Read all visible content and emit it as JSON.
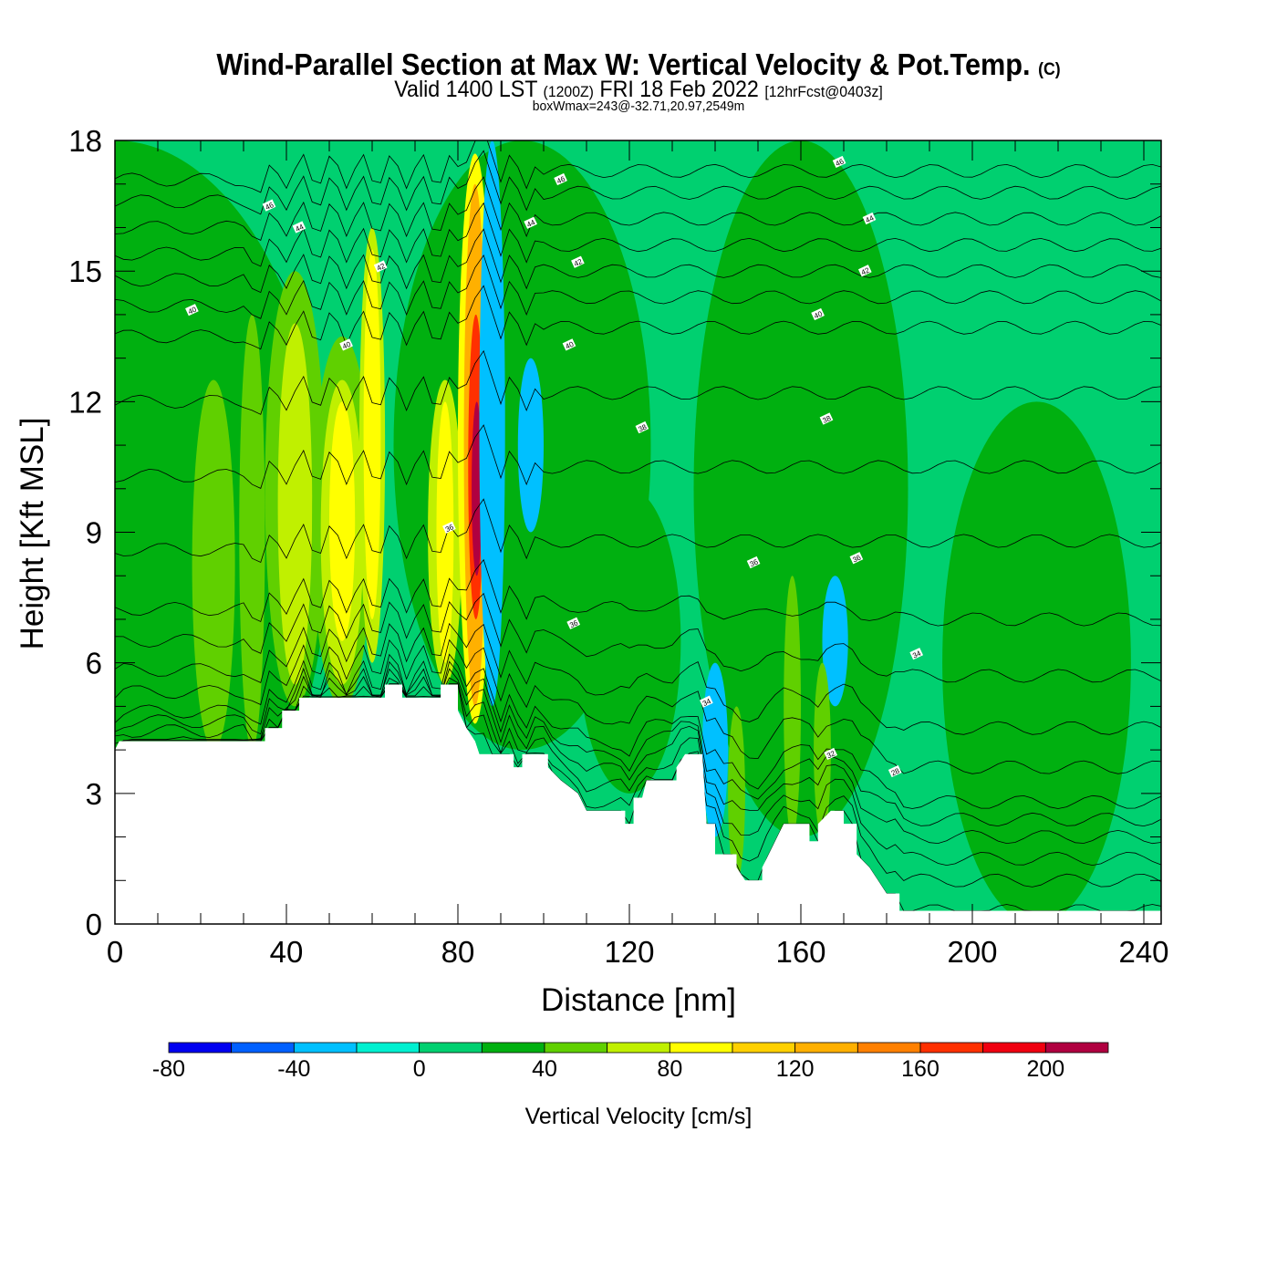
{
  "title": "Wind-Parallel Section at Max W: Vertical Velocity & Pot.Temp.",
  "copyright": "(C)",
  "subtitle": {
    "main1": "Valid 1400 LST",
    "utc": "(1200Z)",
    "main2": "FRI 18 Feb 2022",
    "fcst": "[12hrFcst@0403z]"
  },
  "box_info": "boxWmax=243@-32.71,20.97,2549m",
  "chart_data": {
    "type": "heatmap",
    "xlabel": "Distance [nm]",
    "ylabel": "Height [Kft MSL]",
    "xlim": [
      0,
      244
    ],
    "ylim": [
      0,
      18
    ],
    "xticks": [
      0,
      40,
      80,
      120,
      160,
      200,
      240
    ],
    "yticks": [
      0,
      3,
      6,
      9,
      12,
      15,
      18
    ],
    "colorbar": {
      "label": "Vertical Velocity [cm/s]",
      "bounds": [
        -80,
        -60,
        -40,
        -20,
        0,
        20,
        40,
        60,
        80,
        100,
        120,
        140,
        160,
        180,
        200,
        220
      ],
      "colors": [
        "#0000f0",
        "#0060ff",
        "#00c0ff",
        "#00f0d0",
        "#00d070",
        "#00b010",
        "#60d000",
        "#c0f000",
        "#ffff00",
        "#ffd000",
        "#ffb000",
        "#ff8000",
        "#ff3000",
        "#f00010",
        "#b00040"
      ],
      "ticks": [
        -80,
        -40,
        0,
        40,
        80,
        120,
        160,
        200
      ]
    },
    "terrain": [
      [
        0,
        4.0
      ],
      [
        1,
        4.2
      ],
      [
        35,
        4.2
      ],
      [
        35,
        4.5
      ],
      [
        39,
        4.5
      ],
      [
        39,
        4.9
      ],
      [
        43,
        4.9
      ],
      [
        43,
        5.2
      ],
      [
        63,
        5.2
      ],
      [
        63,
        5.5
      ],
      [
        67,
        5.5
      ],
      [
        67,
        5.2
      ],
      [
        76,
        5.2
      ],
      [
        76,
        5.5
      ],
      [
        80,
        5.5
      ],
      [
        80,
        4.9
      ],
      [
        82,
        4.5
      ],
      [
        84,
        4.2
      ],
      [
        85,
        3.9
      ],
      [
        93,
        3.9
      ],
      [
        93,
        3.6
      ],
      [
        95,
        3.6
      ],
      [
        95,
        3.9
      ],
      [
        101,
        3.9
      ],
      [
        101,
        3.6
      ],
      [
        104,
        3.3
      ],
      [
        108,
        3.0
      ],
      [
        110,
        2.6
      ],
      [
        119,
        2.6
      ],
      [
        119,
        2.3
      ],
      [
        121,
        2.3
      ],
      [
        121,
        2.9
      ],
      [
        123,
        2.9
      ],
      [
        124,
        3.3
      ],
      [
        131,
        3.3
      ],
      [
        131,
        3.6
      ],
      [
        133,
        3.9
      ],
      [
        137,
        3.9
      ],
      [
        138,
        2.3
      ],
      [
        140,
        2.3
      ],
      [
        140,
        1.6
      ],
      [
        145,
        1.6
      ],
      [
        145,
        1.3
      ],
      [
        147,
        1.0
      ],
      [
        151,
        1.0
      ],
      [
        151,
        1.3
      ],
      [
        154,
        1.9
      ],
      [
        156,
        2.3
      ],
      [
        162,
        2.3
      ],
      [
        162,
        1.9
      ],
      [
        164,
        1.9
      ],
      [
        164,
        2.3
      ],
      [
        167,
        2.6
      ],
      [
        170,
        2.6
      ],
      [
        170,
        2.3
      ],
      [
        173,
        2.3
      ],
      [
        173,
        1.6
      ],
      [
        176,
        1.3
      ],
      [
        178,
        1.0
      ],
      [
        180,
        0.7
      ],
      [
        183,
        0.7
      ],
      [
        183,
        0.3
      ],
      [
        244,
        0.3
      ]
    ],
    "features": [
      {
        "x": 0,
        "w": 50,
        "z0": 0,
        "z1": 18,
        "value": 30
      },
      {
        "x": 95,
        "w": 30,
        "z0": 4,
        "z1": 18,
        "value": 30
      },
      {
        "x": 160,
        "w": 25,
        "z0": 2,
        "z1": 18,
        "value": 30
      },
      {
        "x": 215,
        "w": 22,
        "z0": 0,
        "z1": 12,
        "value": 30
      },
      {
        "x": 120,
        "w": 12,
        "z0": 3,
        "z1": 10,
        "value": 30
      },
      {
        "x": 23,
        "w": 5,
        "z0": 4,
        "z1": 12.5,
        "value": 50
      },
      {
        "x": 32,
        "w": 3,
        "z0": 4,
        "z1": 14,
        "value": 50
      },
      {
        "x": 42,
        "w": 7,
        "z0": 5,
        "z1": 15,
        "value": 50
      },
      {
        "x": 42,
        "w": 4,
        "z0": 5.5,
        "z1": 13.8,
        "value": 70
      },
      {
        "x": 53,
        "w": 7,
        "z0": 5,
        "z1": 13.5,
        "value": 50
      },
      {
        "x": 53,
        "w": 5,
        "z0": 5.5,
        "z1": 12.5,
        "value": 70
      },
      {
        "x": 53,
        "w": 3,
        "z0": 6.5,
        "z1": 12,
        "value": 90
      },
      {
        "x": 60,
        "w": 3,
        "z0": 6,
        "z1": 16,
        "value": 70
      },
      {
        "x": 60,
        "w": 2,
        "z0": 7,
        "z1": 15.5,
        "value": 90
      },
      {
        "x": 77,
        "w": 4,
        "z0": 5.5,
        "z1": 12.5,
        "value": 70
      },
      {
        "x": 77,
        "w": 2,
        "z0": 6,
        "z1": 12,
        "value": 90
      },
      {
        "x": 84,
        "w": 4,
        "z0": 4.6,
        "z1": 17.7,
        "value": 90
      },
      {
        "x": 84,
        "w": 2.6,
        "z0": 5,
        "z1": 17,
        "value": 130
      },
      {
        "x": 84.2,
        "w": 1.8,
        "z0": 7,
        "z1": 14,
        "value": 170
      },
      {
        "x": 84.4,
        "w": 1.2,
        "z0": 8,
        "z1": 12,
        "value": 210
      },
      {
        "x": 88,
        "w": 3,
        "z0": 5,
        "z1": 18,
        "value": -30
      },
      {
        "x": 97,
        "w": 3,
        "z0": 9,
        "z1": 13,
        "value": -30
      },
      {
        "x": 140,
        "w": 3,
        "z0": 2,
        "z1": 6,
        "value": -30
      },
      {
        "x": 168,
        "w": 3,
        "z0": 5,
        "z1": 8,
        "value": -30
      },
      {
        "x": 145,
        "w": 2,
        "z0": 1,
        "z1": 5,
        "value": 50
      },
      {
        "x": 158,
        "w": 2,
        "z0": 2,
        "z1": 8,
        "value": 50
      },
      {
        "x": 165,
        "w": 2,
        "z0": 2,
        "z1": 6,
        "value": 50
      }
    ],
    "isentropes": [
      [
        27,
        0.3
      ],
      [
        28,
        1.0
      ],
      [
        29,
        1.5
      ],
      [
        30,
        2.0
      ],
      [
        31,
        2.4
      ],
      [
        32,
        2.8
      ],
      [
        33,
        3.6
      ],
      [
        34,
        4.5
      ],
      [
        35,
        5.7
      ],
      [
        36,
        7.0
      ],
      [
        37,
        8.8
      ],
      [
        38,
        10.5
      ],
      [
        39,
        12.2
      ],
      [
        40,
        13.7
      ],
      [
        41,
        14.4
      ],
      [
        42,
        15.0
      ],
      [
        43,
        15.6
      ],
      [
        44,
        16.2
      ],
      [
        45,
        16.8
      ],
      [
        46,
        17.3
      ]
    ],
    "contour_labels": [
      {
        "x": 36,
        "z": 16.5,
        "text": "46"
      },
      {
        "x": 43,
        "z": 16.0,
        "text": "44"
      },
      {
        "x": 62,
        "z": 15.1,
        "text": "42"
      },
      {
        "x": 18,
        "z": 14.1,
        "text": "40"
      },
      {
        "x": 54,
        "z": 13.3,
        "text": "40"
      },
      {
        "x": 78,
        "z": 9.1,
        "text": "36"
      },
      {
        "x": 104,
        "z": 17.1,
        "text": "46"
      },
      {
        "x": 97,
        "z": 16.1,
        "text": "44"
      },
      {
        "x": 108,
        "z": 15.2,
        "text": "42"
      },
      {
        "x": 106,
        "z": 13.3,
        "text": "40"
      },
      {
        "x": 123,
        "z": 11.4,
        "text": "38"
      },
      {
        "x": 107,
        "z": 6.9,
        "text": "36"
      },
      {
        "x": 149,
        "z": 8.3,
        "text": "36"
      },
      {
        "x": 138,
        "z": 5.1,
        "text": "34"
      },
      {
        "x": 169,
        "z": 17.5,
        "text": "46"
      },
      {
        "x": 176,
        "z": 16.2,
        "text": "44"
      },
      {
        "x": 175,
        "z": 15.0,
        "text": "42"
      },
      {
        "x": 164,
        "z": 14.0,
        "text": "40"
      },
      {
        "x": 166,
        "z": 11.6,
        "text": "38"
      },
      {
        "x": 173,
        "z": 8.4,
        "text": "36"
      },
      {
        "x": 187,
        "z": 6.2,
        "text": "34"
      },
      {
        "x": 167,
        "z": 3.9,
        "text": "32"
      },
      {
        "x": 182,
        "z": 3.5,
        "text": "28"
      }
    ]
  }
}
